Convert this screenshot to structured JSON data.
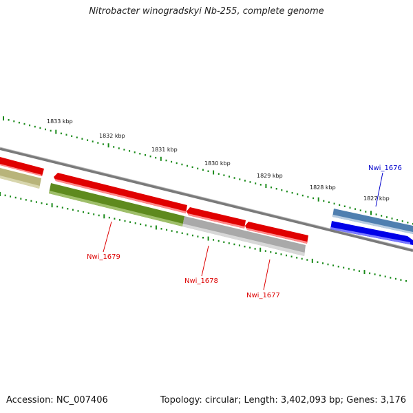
{
  "title": "Nitrobacter winogradskyi Nb-255, complete genome",
  "footer": {
    "accession": "Accession: NC_007406",
    "summary": "Topology: circular; Length: 3,402,093 bp; Genes: 3,176"
  },
  "colors": {
    "forward_gene": "#ee0000",
    "reverse_gene": "#0000ee",
    "backbone": "#808080",
    "tick": "#1a8a1a",
    "label_red": "#dd0000",
    "label_blue": "#0000cc"
  },
  "ticks": [
    {
      "label": "1833 kbp"
    },
    {
      "label": "1832 kbp"
    },
    {
      "label": "1831 kbp"
    },
    {
      "label": "1830 kbp"
    },
    {
      "label": "1829 kbp"
    },
    {
      "label": "1828 kbp"
    },
    {
      "label": "1827 kbp"
    }
  ],
  "genes": [
    {
      "label": "Nwi_1679",
      "strand": "reverse"
    },
    {
      "label": "Nwi_1678",
      "strand": "reverse"
    },
    {
      "label": "Nwi_1677",
      "strand": "reverse"
    },
    {
      "label": "Nwi_1676",
      "strand": "forward"
    }
  ]
}
